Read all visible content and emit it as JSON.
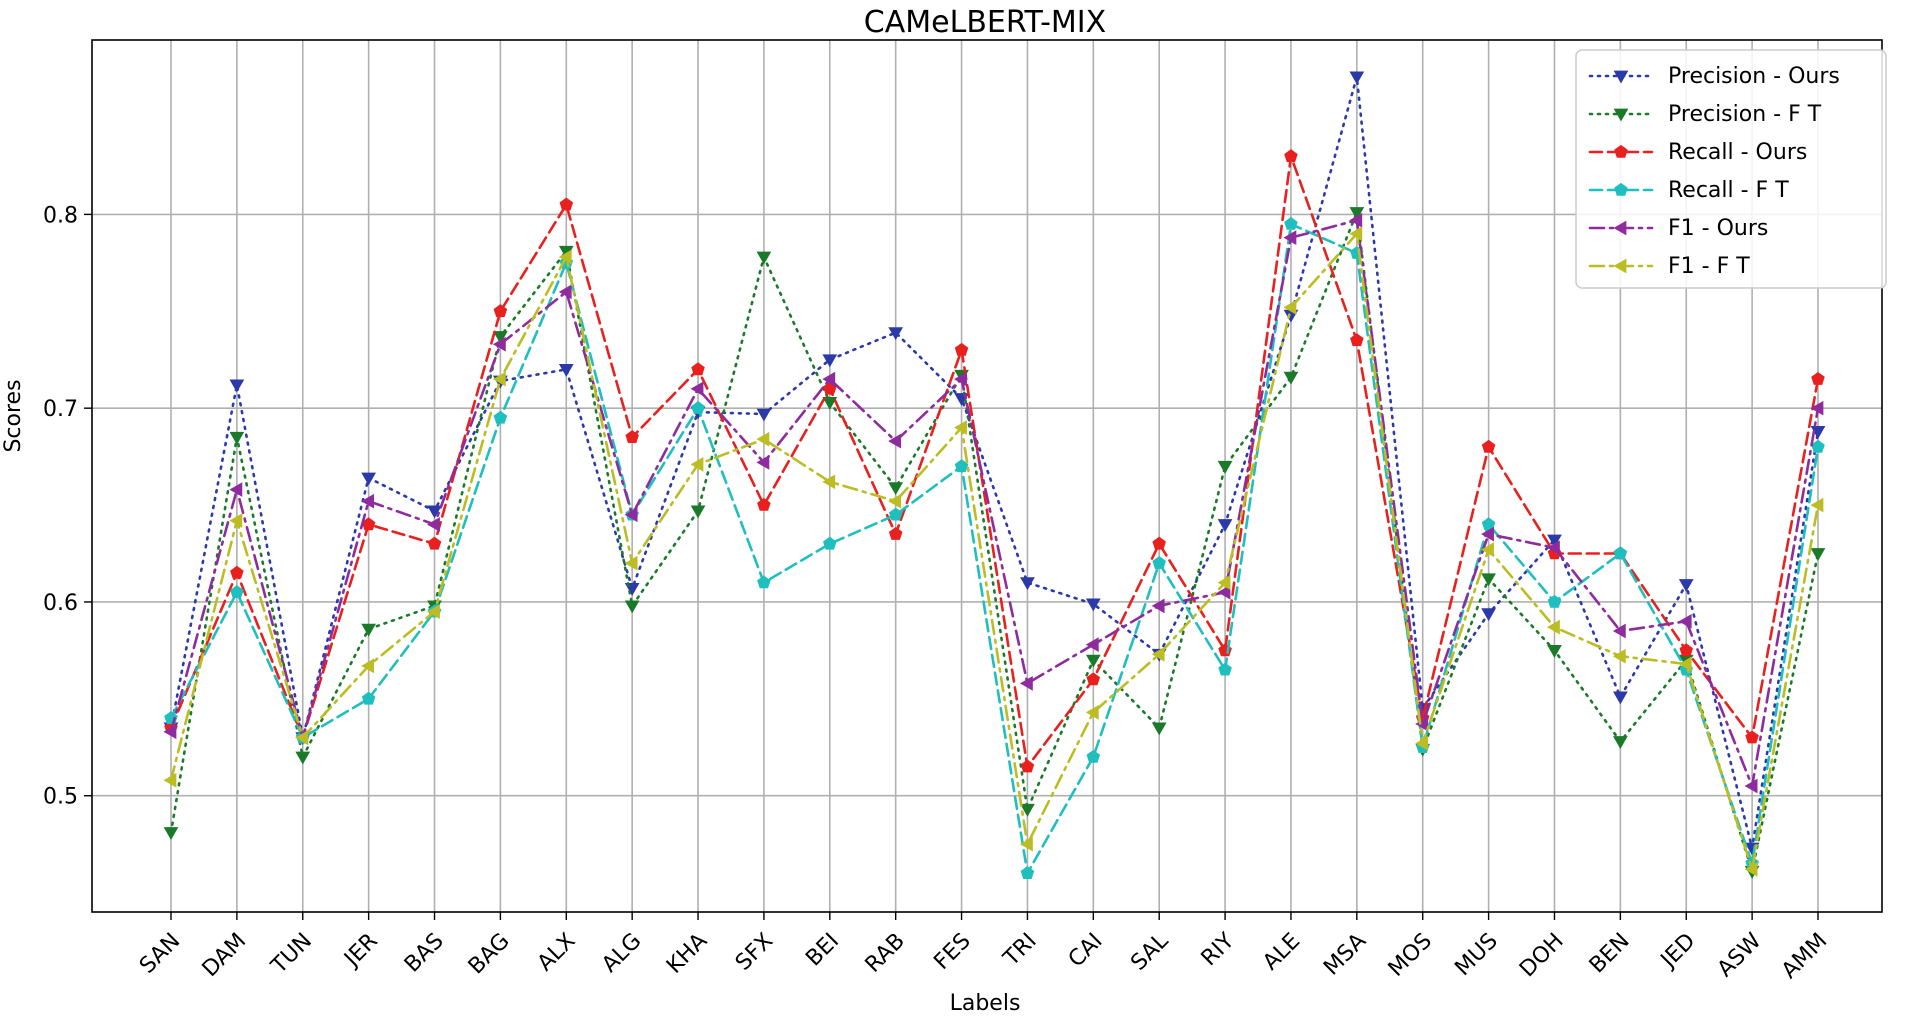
{
  "chart_data": {
    "type": "line",
    "title": "CAMeLBERT-MIX",
    "xlabel": "Labels",
    "ylabel": "Scores",
    "ylim": [
      0.44,
      0.89
    ],
    "yticks": [
      "0.5",
      "0.6",
      "0.7",
      "0.8"
    ],
    "grid": true,
    "legend_position": "top-right",
    "categories": [
      "SAN",
      "DAM",
      "TUN",
      "JER",
      "BAS",
      "BAG",
      "ALX",
      "ALG",
      "KHA",
      "SFX",
      "BEI",
      "RAB",
      "FES",
      "TRI",
      "CAI",
      "SAL",
      "RIY",
      "ALE",
      "MSA",
      "MOS",
      "MUS",
      "DOH",
      "BEN",
      "JED",
      "ASW",
      "AMM"
    ],
    "series": [
      {
        "name": "Precision - Ours",
        "color": "#2b3aa8",
        "dash": "dotted",
        "marker": "triangle-down",
        "values": [
          0.535,
          0.712,
          0.53,
          0.664,
          0.647,
          0.714,
          0.72,
          0.607,
          0.698,
          0.697,
          0.725,
          0.739,
          0.705,
          0.61,
          0.599,
          0.573,
          0.64,
          0.748,
          0.871,
          0.545,
          0.594,
          0.632,
          0.551,
          0.609,
          0.473,
          0.688
        ]
      },
      {
        "name": "Precision - F T",
        "color": "#1a7a2a",
        "dash": "dotted",
        "marker": "triangle-down",
        "values": [
          0.481,
          0.685,
          0.52,
          0.586,
          0.598,
          0.737,
          0.781,
          0.598,
          0.647,
          0.778,
          0.703,
          0.659,
          0.717,
          0.493,
          0.57,
          0.535,
          0.67,
          0.716,
          0.801,
          0.524,
          0.612,
          0.575,
          0.528,
          0.57,
          0.461,
          0.625
        ]
      },
      {
        "name": "Recall - Ours",
        "color": "#e8201e",
        "dash": "dashed",
        "marker": "pentagon",
        "values": [
          0.535,
          0.615,
          0.53,
          0.64,
          0.63,
          0.75,
          0.805,
          0.685,
          0.72,
          0.65,
          0.71,
          0.635,
          0.73,
          0.515,
          0.56,
          0.63,
          0.575,
          0.83,
          0.735,
          0.54,
          0.68,
          0.625,
          0.625,
          0.575,
          0.53,
          0.715
        ]
      },
      {
        "name": "Recall - F T",
        "color": "#1fbfbf",
        "dash": "dashed",
        "marker": "pentagon",
        "values": [
          0.54,
          0.605,
          0.53,
          0.55,
          0.595,
          0.695,
          0.775,
          0.645,
          0.7,
          0.61,
          0.63,
          0.645,
          0.67,
          0.46,
          0.52,
          0.62,
          0.565,
          0.795,
          0.78,
          0.525,
          0.64,
          0.6,
          0.625,
          0.565,
          0.465,
          0.68
        ]
      },
      {
        "name": "F1 - Ours",
        "color": "#8e2c9e",
        "dash": "dashdot",
        "marker": "triangle-left",
        "values": [
          0.533,
          0.658,
          0.53,
          0.652,
          0.64,
          0.733,
          0.76,
          0.645,
          0.71,
          0.672,
          0.715,
          0.683,
          0.715,
          0.558,
          0.578,
          0.598,
          0.605,
          0.788,
          0.797,
          0.537,
          0.635,
          0.628,
          0.585,
          0.59,
          0.505,
          0.7
        ]
      },
      {
        "name": "F1 - F T",
        "color": "#bcbd22",
        "dash": "dashdot",
        "marker": "triangle-left",
        "values": [
          0.508,
          0.642,
          0.53,
          0.567,
          0.595,
          0.715,
          0.778,
          0.62,
          0.671,
          0.684,
          0.662,
          0.652,
          0.69,
          0.475,
          0.543,
          0.573,
          0.61,
          0.752,
          0.79,
          0.527,
          0.627,
          0.587,
          0.572,
          0.568,
          0.462,
          0.65
        ]
      }
    ]
  }
}
